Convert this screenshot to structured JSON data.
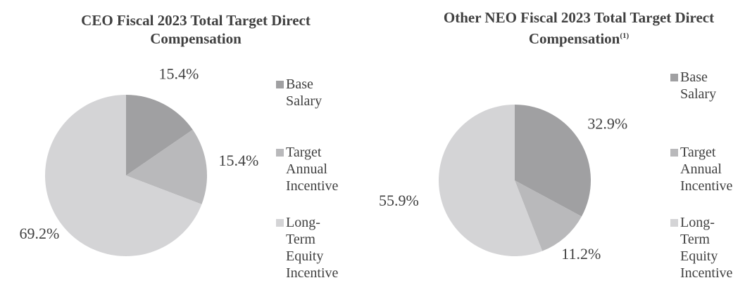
{
  "chart_data": [
    {
      "type": "pie",
      "title": "CEO Fiscal 2023 Total Target Direct Compensation",
      "categories": [
        "Base Salary",
        "Target Annual Incentive",
        "Long-Term Equity Incentive"
      ],
      "values": [
        15.4,
        15.4,
        69.2
      ],
      "value_labels": [
        "15.4%",
        "15.4%",
        "69.2%"
      ],
      "colors": [
        "#a0a0a2",
        "#b9b9bb",
        "#d4d4d6"
      ],
      "legend": "right"
    },
    {
      "type": "pie",
      "title": "Other NEO Fiscal 2023 Total Target Direct Compensation",
      "title_note": "(1)",
      "categories": [
        "Base Salary",
        "Target Annual Incentive",
        "Long-Term Equity Incentive"
      ],
      "values": [
        32.9,
        11.2,
        55.9
      ],
      "value_labels": [
        "32.9%",
        "11.2%",
        "55.9%"
      ],
      "colors": [
        "#a0a0a2",
        "#b9b9bb",
        "#d4d4d6"
      ],
      "legend": "right"
    }
  ]
}
